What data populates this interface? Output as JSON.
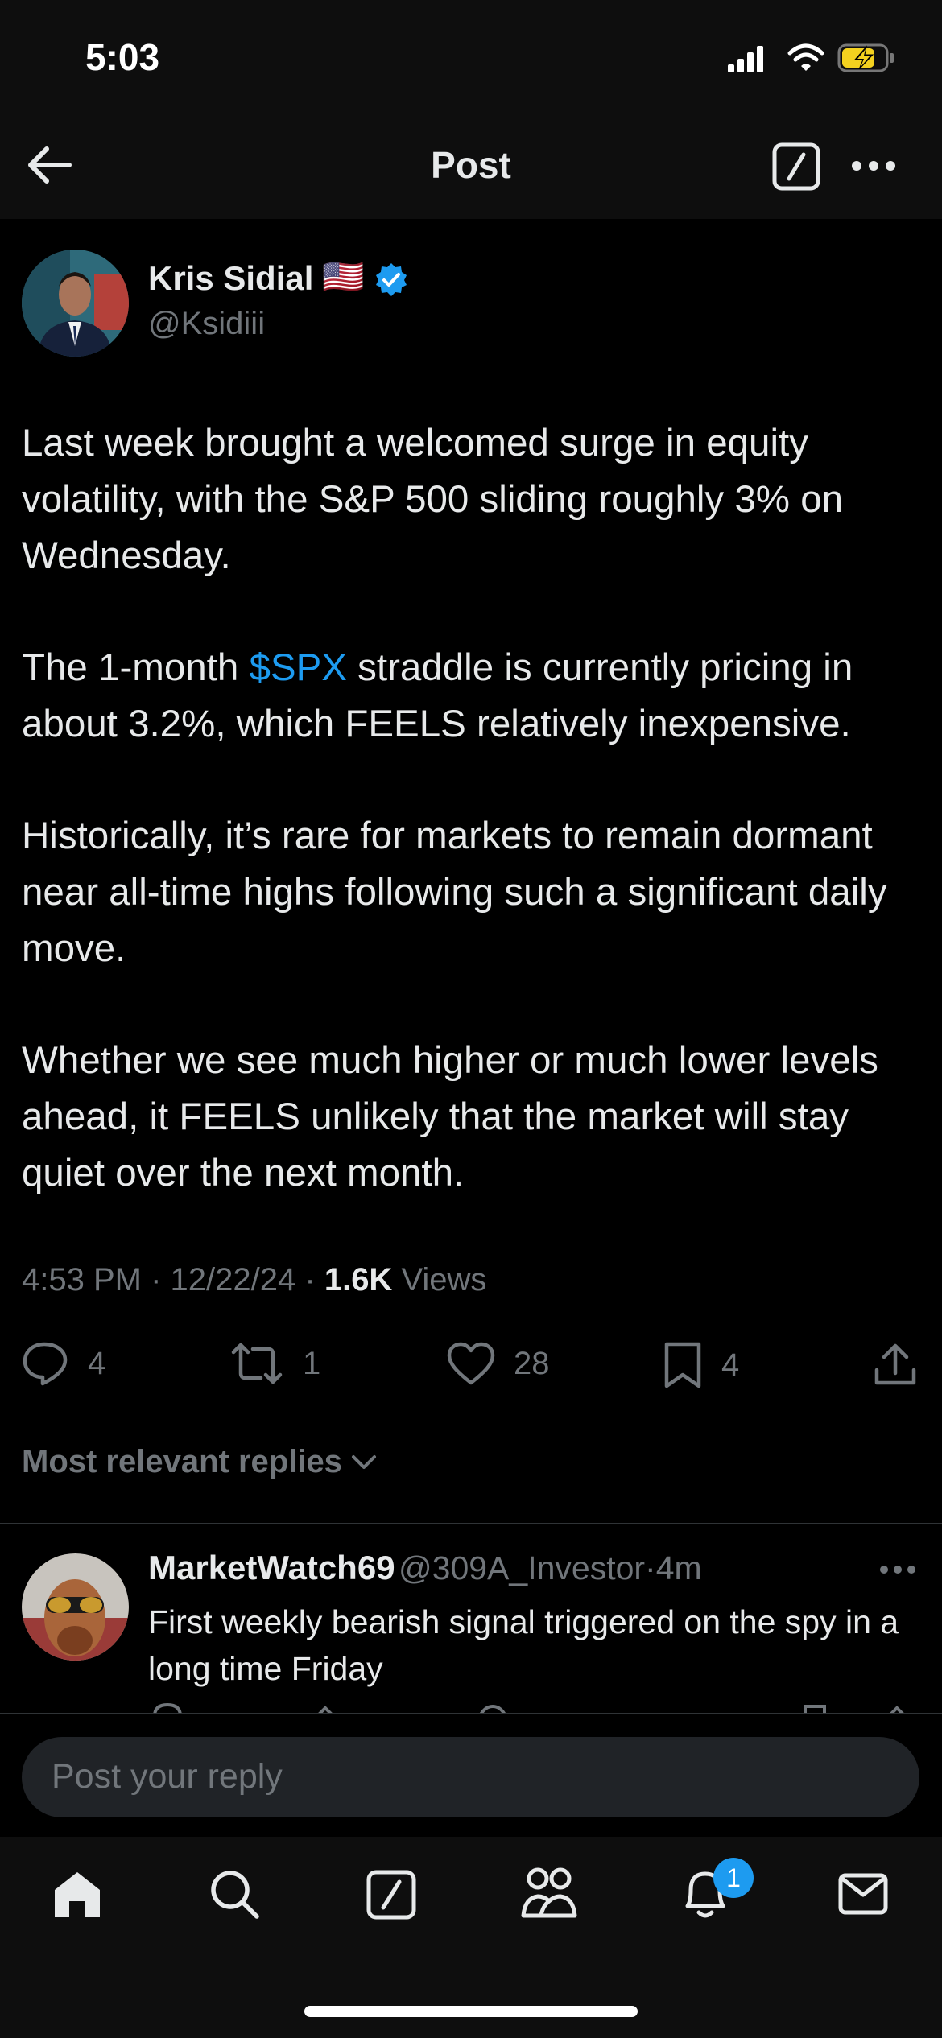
{
  "status_bar": {
    "time": "5:03"
  },
  "header": {
    "title": "Post"
  },
  "post": {
    "author_name": "Kris Sidial",
    "flag": "🇺🇸",
    "handle": "@Ksidiii",
    "paragraphs": [
      {
        "text": "Last week brought a welcomed surge in equity volatility, with the S&P 500 sliding roughly 3% on Wednesday."
      },
      {
        "before": "The 1-month ",
        "cashtag": "$SPX",
        "after": " straddle is currently pricing in about 3.2%, which FEELS relatively inexpensive."
      },
      {
        "text": "Historically, it’s rare for markets to remain dormant near all-time highs following such a significant daily move."
      },
      {
        "text": "Whether we see much higher or much lower levels ahead, it FEELS unlikely that the market will stay quiet over the next month."
      }
    ],
    "time": "4:53 PM",
    "date": "12/22/24",
    "sep": "·",
    "views_count": "1.6K",
    "views_label": "Views",
    "stats": {
      "replies": "4",
      "reposts": "1",
      "likes": "28",
      "bookmarks": "4"
    }
  },
  "replies_sort": {
    "label": "Most relevant replies"
  },
  "reply": {
    "name": "MarketWatch69",
    "handle": "@309A_Investor",
    "sep": "·",
    "time": "4m",
    "text": "First weekly bearish signal triggered on the spy in a long time Friday"
  },
  "composer": {
    "placeholder": "Post your reply"
  },
  "tabbar": {
    "notifications_badge": "1"
  },
  "colors": {
    "accent": "#1d9bf0",
    "muted": "#71767b",
    "text": "#e7e9ea",
    "background": "#000000"
  }
}
